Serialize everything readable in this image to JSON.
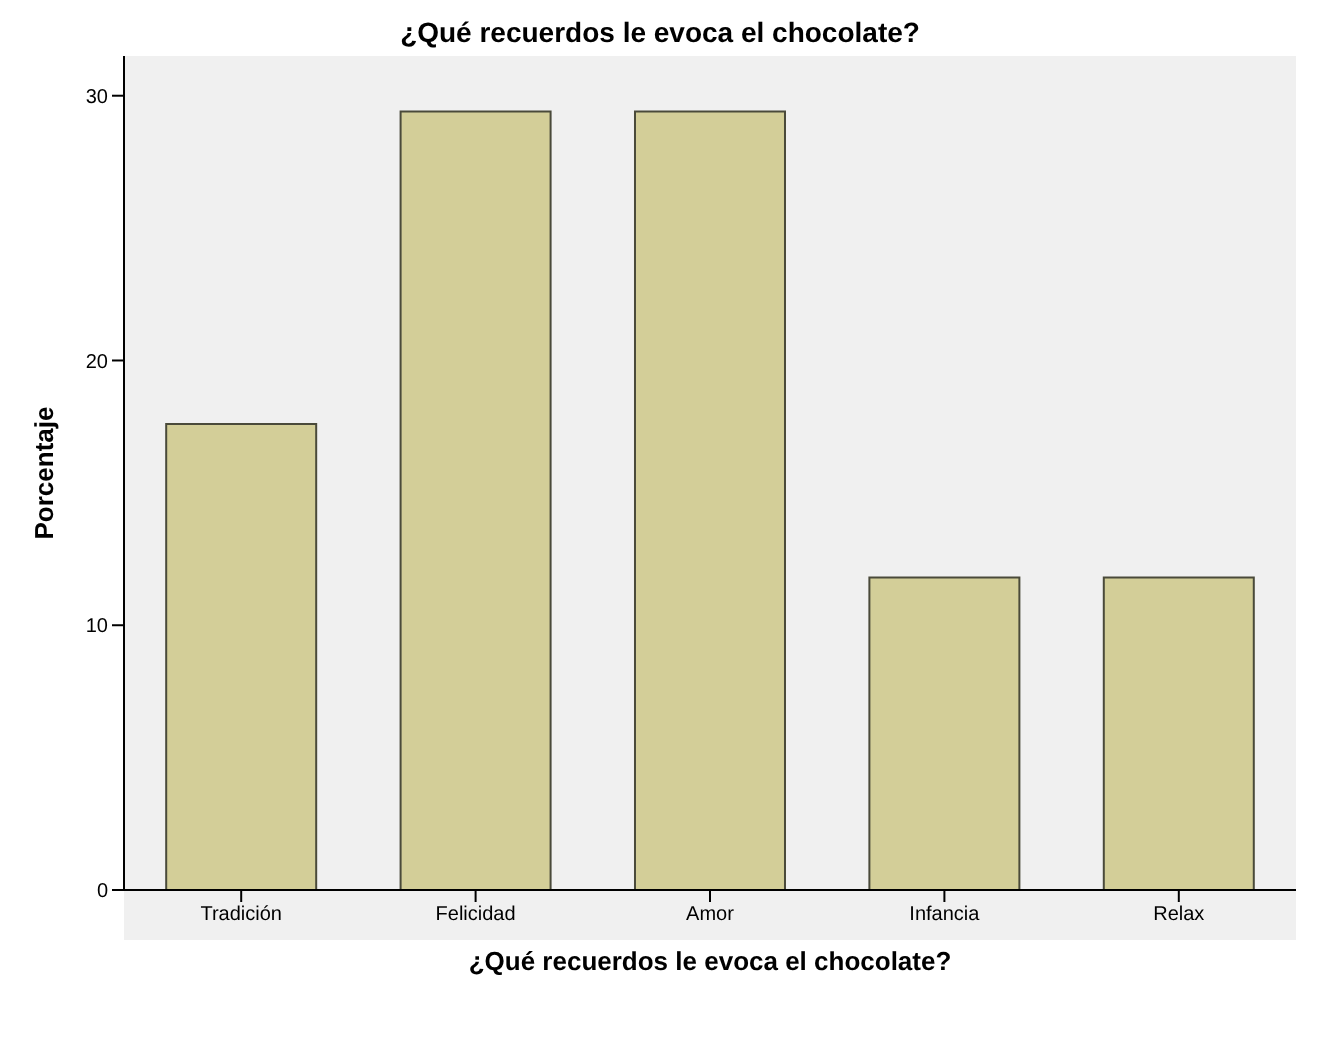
{
  "chart_data": {
    "type": "bar",
    "title": "¿Qué recuerdos le evoca el chocolate?",
    "xlabel": "¿Qué recuerdos le evoca el chocolate?",
    "ylabel": "Porcentaje",
    "categories": [
      "Tradición",
      "Felicidad",
      "Amor",
      "Infancia",
      "Relax"
    ],
    "values": [
      17.6,
      29.4,
      29.4,
      11.8,
      11.8
    ],
    "color": "#d3ce98",
    "ylim": [
      0,
      31.5
    ],
    "yticks": [
      0,
      10,
      20,
      30
    ],
    "grid": false,
    "legend": false
  }
}
